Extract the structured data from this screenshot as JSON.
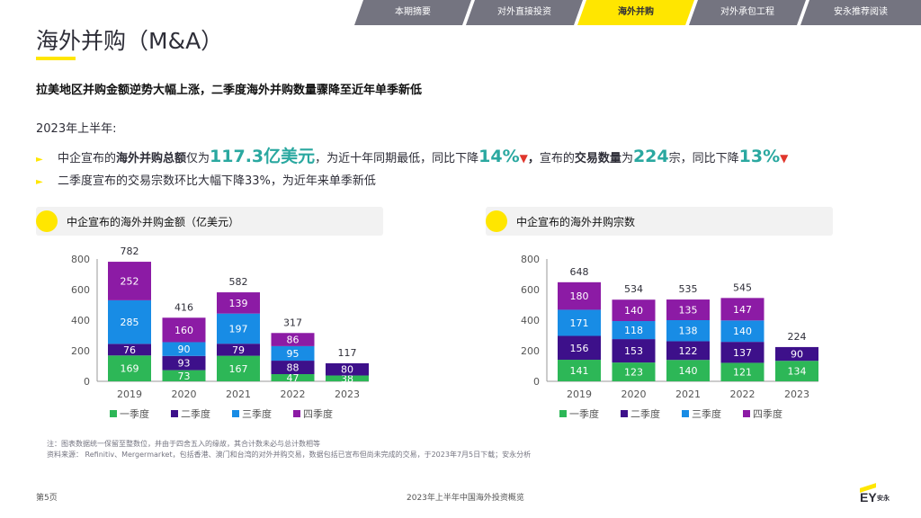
{
  "tabs": [
    "本期摘要",
    "对外直接投资",
    "海外并购",
    "对外承包工程",
    "安永推荐阅读"
  ],
  "page": {
    "title": "海外并购（M&A）",
    "headline": "拉美地区并购金额逆势大幅上涨，二季度海外并购数量骤降至近年单季新低",
    "period": "2023年上半年:",
    "bullet1": {
      "p1": "中企宣布的",
      "p2": "海外并购总额",
      "p3": "仅为",
      "amount": "117.3亿美元",
      "p4": "，为近十年同期最低，同比下降",
      "pct1": "14%",
      "sep": "，",
      "p5": "宣布的",
      "p6": "交易数量",
      "p7": "为",
      "count": "224",
      "p8": "宗，同比下降",
      "pct2": "13%",
      "down": "▼"
    },
    "bullet2": "二季度宣布的交易宗数环比大幅下降33%，为近年来单季新低",
    "bullet_marker": "►"
  },
  "panels": {
    "left_title": "中企宣布的海外并购金额（亿美元）",
    "right_title": "中企宣布的海外并购宗数"
  },
  "chart_data": [
    {
      "type": "bar",
      "title": "中企宣布的海外并购金额（亿美元）",
      "categories": [
        "2019",
        "2020",
        "2021",
        "2022",
        "2023"
      ],
      "series": [
        {
          "name": "一季度",
          "color": "#2db757",
          "values": [
            169,
            73,
            167,
            47,
            38
          ]
        },
        {
          "name": "二季度",
          "color": "#3d108a",
          "values": [
            76,
            93,
            79,
            88,
            80
          ]
        },
        {
          "name": "三季度",
          "color": "#188ce5",
          "values": [
            285,
            90,
            197,
            95,
            null
          ]
        },
        {
          "name": "四季度",
          "color": "#8c1ba5",
          "values": [
            252,
            160,
            139,
            86,
            null
          ]
        }
      ],
      "totals": [
        782,
        416,
        582,
        317,
        117
      ],
      "yticks": [
        0,
        200,
        400,
        600,
        800
      ],
      "ylim": [
        0,
        800
      ]
    },
    {
      "type": "bar",
      "title": "中企宣布的海外并购宗数",
      "categories": [
        "2019",
        "2020",
        "2021",
        "2022",
        "2023"
      ],
      "series": [
        {
          "name": "一季度",
          "color": "#2db757",
          "values": [
            141,
            123,
            140,
            121,
            134
          ]
        },
        {
          "name": "二季度",
          "color": "#3d108a",
          "values": [
            156,
            153,
            122,
            137,
            90
          ]
        },
        {
          "name": "三季度",
          "color": "#188ce5",
          "values": [
            171,
            118,
            138,
            140,
            null
          ]
        },
        {
          "name": "四季度",
          "color": "#8c1ba5",
          "values": [
            180,
            140,
            135,
            147,
            null
          ]
        }
      ],
      "totals": [
        648,
        534,
        535,
        545,
        224
      ],
      "yticks": [
        0,
        200,
        400,
        600,
        800
      ],
      "ylim": [
        0,
        800
      ]
    }
  ],
  "footer": {
    "note1": "注：图表数据统一保留至整数位，并由于四舍五入的缘故，其合计数未必与总计数相等",
    "note2": "资料来源： Refinitiv、Mergermarket，包括香港、澳门和台湾的对外并购交易，数据包括已宣布但尚未完成的交易，于2023年7月5日下载；安永分析",
    "page_num": "第5页",
    "doc_title": "2023年上半年中国海外投资概览",
    "logo_text": "EY",
    "logo_cn": "安永"
  }
}
